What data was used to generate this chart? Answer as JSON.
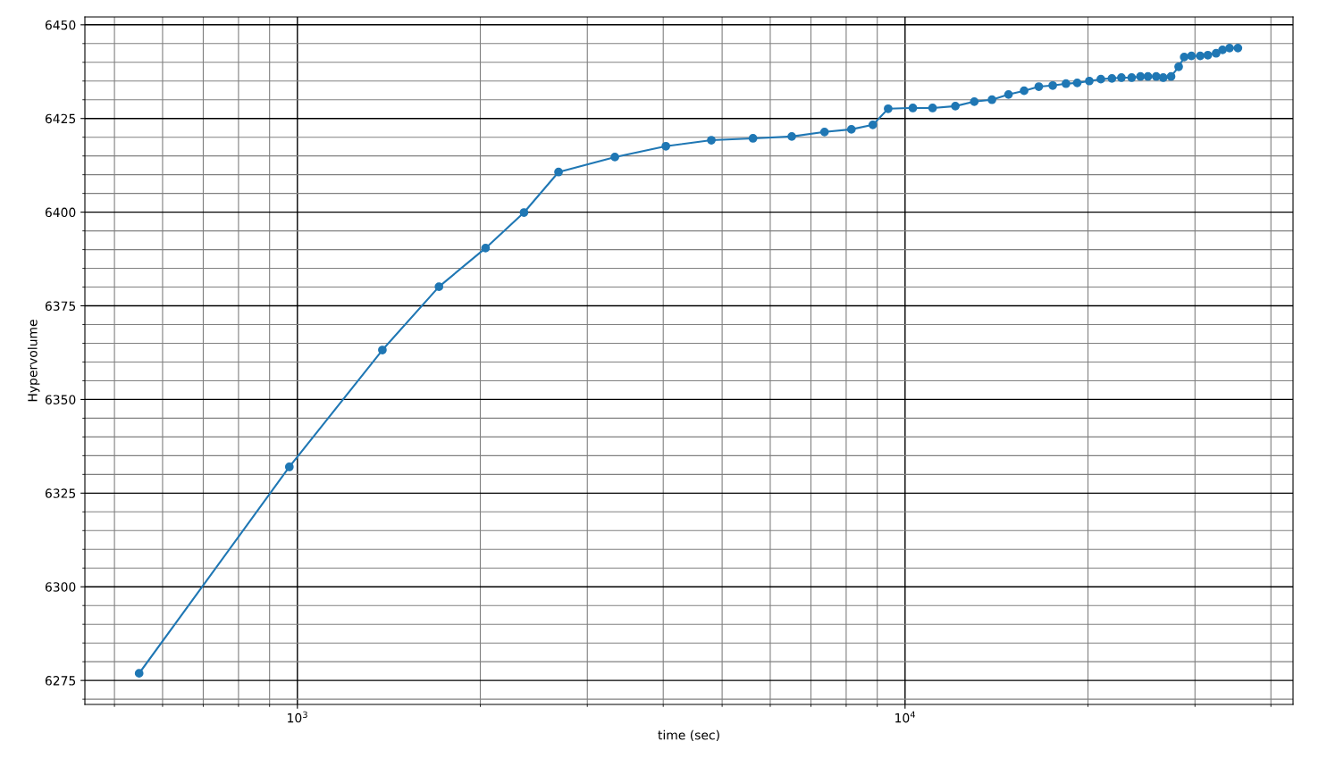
{
  "chart_data": {
    "type": "line",
    "xlabel": "time (sec)",
    "ylabel": "Hypervolume",
    "log": "x",
    "x": [
      549,
      970,
      1380,
      1710,
      2040,
      2360,
      2690,
      3330,
      4040,
      4800,
      5620,
      6510,
      7370,
      8160,
      8850,
      9380,
      10300,
      11100,
      12100,
      13000,
      13900,
      14800,
      15700,
      16600,
      17500,
      18400,
      19200,
      20100,
      21000,
      21900,
      22700,
      23600,
      24400,
      25100,
      25900,
      26600,
      27400,
      28200,
      28800,
      29600,
      30600,
      31500,
      32500,
      33300,
      34200,
      35300
    ],
    "series": [
      {
        "color": "#1f77b4",
        "values": [
          6276.9,
          6332.0,
          6363.2,
          6380.1,
          6390.4,
          6399.9,
          6410.7,
          6414.7,
          6417.6,
          6419.2,
          6419.7,
          6420.2,
          6421.4,
          6422.1,
          6423.3,
          6427.6,
          6427.8,
          6427.8,
          6428.3,
          6429.5,
          6430.0,
          6431.4,
          6432.4,
          6433.5,
          6433.8,
          6434.3,
          6434.5,
          6435.0,
          6435.5,
          6435.7,
          6435.9,
          6435.9,
          6436.2,
          6436.2,
          6436.2,
          6435.9,
          6436.2,
          6438.8,
          6441.4,
          6441.7,
          6441.7,
          6441.9,
          6442.4,
          6443.3,
          6443.8,
          6443.8
        ]
      }
    ],
    "xlim": [
      447,
      43500
    ],
    "xticks": [
      {
        "value": 1000,
        "label": "10$^{3}$"
      },
      {
        "value": 10000,
        "label": "10$^{4}$"
      }
    ],
    "ylim": [
      6268.6,
      6452.1
    ],
    "yticks": [
      6275,
      6300,
      6325,
      6350,
      6375,
      6400,
      6425,
      6450
    ],
    "grid": true,
    "marker": "circle",
    "line_style": "solid"
  }
}
